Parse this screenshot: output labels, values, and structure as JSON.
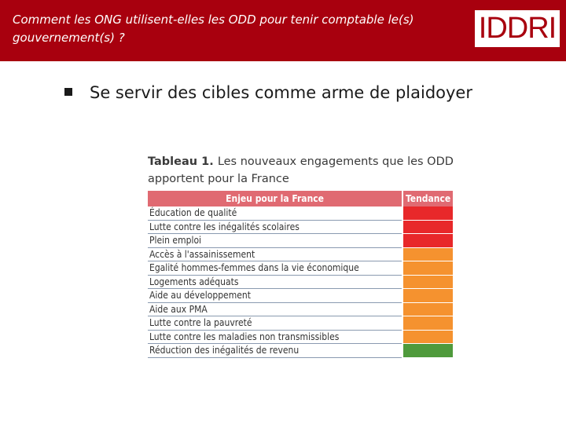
{
  "header": {
    "title": "Comment les ONG utilisent-elles les ODD pour tenir comptable le(s) gouvernement(s) ?",
    "logo_text": "IDDRI"
  },
  "main": {
    "bullet_text": "Se servir des cibles comme arme de plaidoyer"
  },
  "table": {
    "title_label": "Tableau 1.",
    "title_rest": "Les nouveaux engagements que les ODD apportent pour la France",
    "headers": [
      "Enjeu pour la France",
      "Tendance"
    ],
    "colors": {
      "red": "#e8282a",
      "orange": "#f5922f",
      "green": "#4f9a3c",
      "header": "#e06a72"
    },
    "rows": [
      {
        "enjeu": "Éducation de qualité",
        "tendance": "red"
      },
      {
        "enjeu": "Lutte contre les inégalités scolaires",
        "tendance": "red"
      },
      {
        "enjeu": "Plein emploi",
        "tendance": "red"
      },
      {
        "enjeu": "Accès à l'assainissement",
        "tendance": "orange"
      },
      {
        "enjeu": "Egalité hommes-femmes dans la vie économique",
        "tendance": "orange"
      },
      {
        "enjeu": "Logements adéquats",
        "tendance": "orange"
      },
      {
        "enjeu": "Aide au développement",
        "tendance": "orange"
      },
      {
        "enjeu": "Aide aux PMA",
        "tendance": "orange"
      },
      {
        "enjeu": "Lutte contre la pauvreté",
        "tendance": "orange"
      },
      {
        "enjeu": "Lutte contre les maladies non transmissibles",
        "tendance": "orange"
      },
      {
        "enjeu": "Réduction des inégalités de revenu",
        "tendance": "green"
      }
    ]
  }
}
